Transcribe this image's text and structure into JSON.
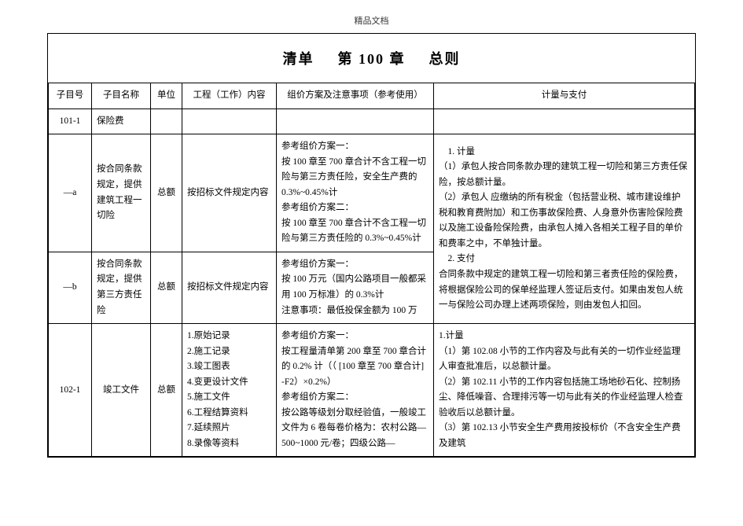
{
  "header": {
    "watermark": "精品文档"
  },
  "title": {
    "part1": "清单",
    "part2": "第 100 章",
    "part3": "总则"
  },
  "columns": {
    "c1": "子目号",
    "c2": "子目名称",
    "c3": "单位",
    "c4": "工程（工作）内容",
    "c5": "组价方案及注意事项（参考使用）",
    "c6": "计量与支付"
  },
  "rows": {
    "r1": {
      "id": "101-1",
      "name": "保险费",
      "unit": "",
      "work": "",
      "plan": "",
      "pay": ""
    },
    "r2": {
      "id": "—a",
      "name": "按合同条款规定，提供建筑工程一切险",
      "unit": "总额",
      "work": "按招标文件规定内容",
      "plan": "参考组价方案一：\n按 100 章至 700 章合计不含工程一切险与第三方责任险，安全生产费的 0.3%~0.45%计\n参考组价方案二：\n按 100 章至 700 章合计不含工程一切险与第三方责任险的 0.3%~0.45%计"
    },
    "r3": {
      "id": "—b",
      "name": "按合同条款规定，提供第三方责任险",
      "unit": "总额",
      "work": "按招标文件规定内容",
      "plan": "参考组价方案一：\n按 100 万元（国内公路项目一般都采用 100 万标准）的 0.3%计\n注意事项：最低投保金额为 100 万"
    },
    "pay_merged": "　1. 计量\n（1）承包人按合同条款办理的建筑工程一切险和第三方责任保险，按总额计量。\n（2）承包人 应缴纳的所有税金（包括营业税、城市建设维护税和教育费附加）和工伤事故保险费、人身意外伤害险保险费以及施工设备险保险费，由承包人摊入各相关工程子目的单价和费率之中，不单独计量。\n　2. 支付\n合同条款中规定的建筑工程一切险和第三者责任险的保险费，将根据保险公司的保单经监理人签证后支付。如果由发包人统一与保险公司办理上述两项保险，则由发包人扣回。",
    "r4": {
      "id": "102-1",
      "name": "竣工文件",
      "unit": "总额",
      "work": "1.原始记录\n2.施工记录\n3.竣工图表\n4.变更设计文件\n5.施工文件\n6.工程结算资料\n7.延续照片\n8.录像等资料",
      "plan": "参考组价方案一：\n按工程量清单第 200 章至 700 章合计的 0.2% 计（（ [100 章至 700 章合计] -F2）×0.2%）\n参考组价方案二：\n按公路等级划分取经验值，一般竣工文件为 6 卷每卷价格为：农村公路—500~1000 元/卷；四级公路—",
      "pay": "1.计量\n（1）第 102.08 小节的工作内容及与此有关的一切作业经监理人审查批准后，以总额计量。\n（2）第 102.11 小节的工作内容包括施工场地砂石化、控制扬尘、降低噪音、合理排污等一切与此有关的作业经监理人检查验收后以总额计量。\n（3）第 102.13 小节安全生产费用按投标价（不含安全生产费及建筑"
    }
  }
}
